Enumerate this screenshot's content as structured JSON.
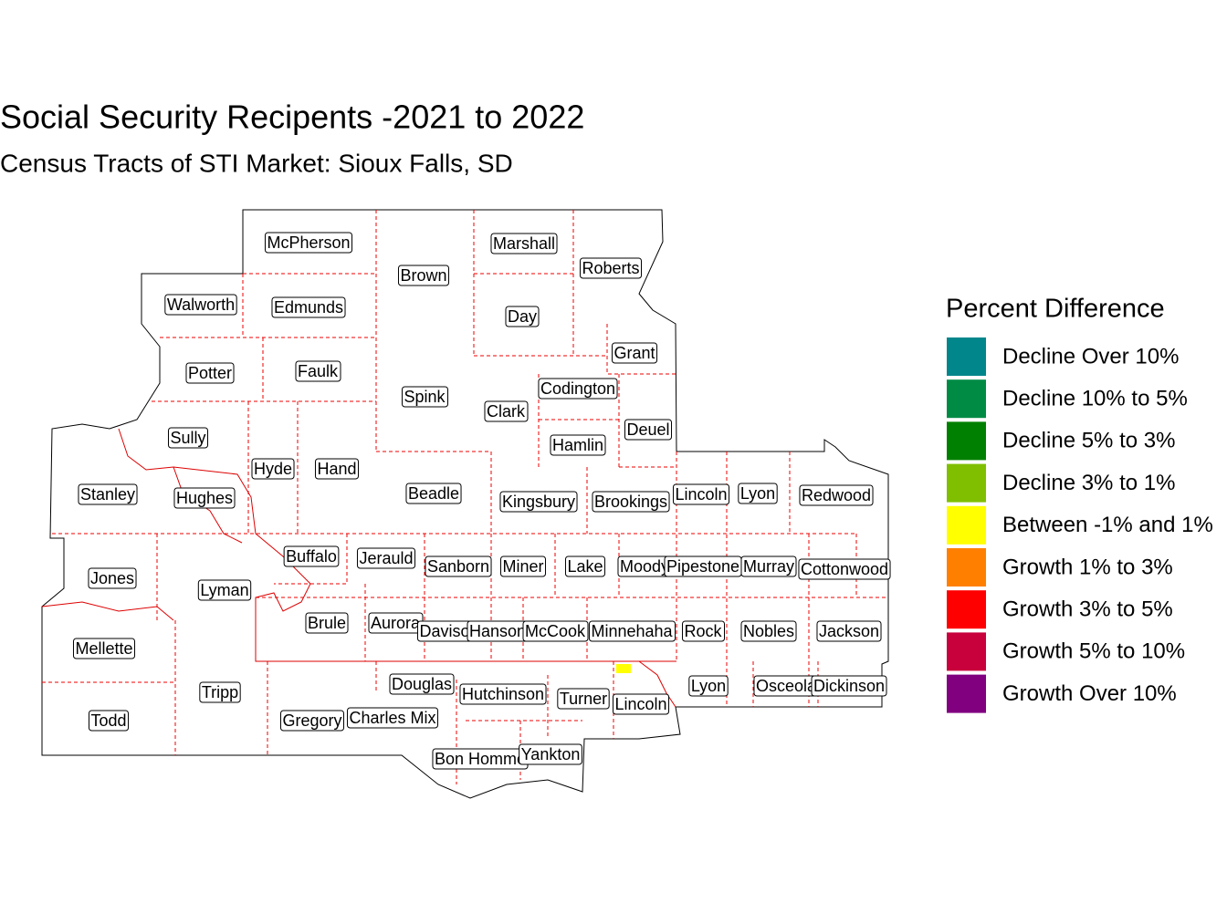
{
  "header": {
    "title": "Social Security Recipents -2021 to 2022",
    "subtitle": "Census Tracts of STI Market: Sioux Falls, SD"
  },
  "legend": {
    "title": "Percent Difference",
    "items": [
      {
        "label": "Decline Over 10%",
        "color": "#00868b"
      },
      {
        "label": "Decline 10% to 5%",
        "color": "#008b45"
      },
      {
        "label": "Decline 5% to 3%",
        "color": "#008000"
      },
      {
        "label": "Decline 3% to 1%",
        "color": "#7fbf00"
      },
      {
        "label": "Between -1% and 1%",
        "color": "#ffff00"
      },
      {
        "label": "Growth 1% to 3%",
        "color": "#ff8000"
      },
      {
        "label": "Growth 3% to 5%",
        "color": "#ff0000"
      },
      {
        "label": "Growth 5% to 10%",
        "color": "#c8003c"
      },
      {
        "label": "Growth Over 10%",
        "color": "#800080"
      }
    ]
  },
  "counties": [
    "McPherson",
    "Brown",
    "Marshall",
    "Roberts",
    "Walworth",
    "Edmunds",
    "Day",
    "Grant",
    "Potter",
    "Faulk",
    "Spink",
    "Codington",
    "Clark",
    "Deuel",
    "Hamlin",
    "Sully",
    "Hyde",
    "Hand",
    "Beadle",
    "Stanley",
    "Hughes",
    "Kingsbury",
    "Brookings",
    "Lincoln",
    "Lyon",
    "Redwood",
    "Buffalo",
    "Jerauld",
    "Sanborn",
    "Miner",
    "Lake",
    "Moody",
    "Pipestone",
    "Murray",
    "Cottonwood",
    "Jones",
    "Lyman",
    "Brule",
    "Aurora",
    "Davison",
    "Hanson",
    "McCook",
    "Minnehaha",
    "Rock",
    "Nobles",
    "Jackson",
    "Mellette",
    "Tripp",
    "Douglas",
    "Hutchinson",
    "Turner",
    "Lincoln",
    "Lyon",
    "Osceola",
    "Dickinson",
    "Todd",
    "Gregory",
    "Charles Mix",
    "Bon Homme",
    "Yankton"
  ]
}
